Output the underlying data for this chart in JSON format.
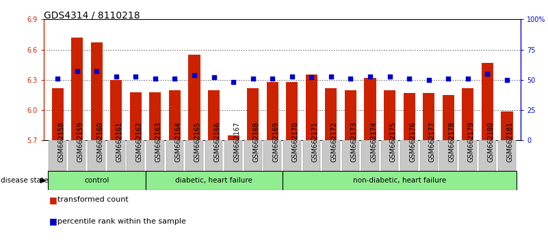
{
  "title": "GDS4314 / 8110218",
  "samples": [
    "GSM662158",
    "GSM662159",
    "GSM662160",
    "GSM662161",
    "GSM662162",
    "GSM662163",
    "GSM662164",
    "GSM662165",
    "GSM662166",
    "GSM662167",
    "GSM662168",
    "GSM662169",
    "GSM662170",
    "GSM662171",
    "GSM662172",
    "GSM662173",
    "GSM662174",
    "GSM662175",
    "GSM662176",
    "GSM662177",
    "GSM662178",
    "GSM662179",
    "GSM662180",
    "GSM662181"
  ],
  "bar_values": [
    6.22,
    6.72,
    6.67,
    6.3,
    6.18,
    6.18,
    6.2,
    6.55,
    6.2,
    5.75,
    6.22,
    6.28,
    6.28,
    6.35,
    6.22,
    6.2,
    6.32,
    6.2,
    6.17,
    6.17,
    6.15,
    6.22,
    6.47,
    5.99
  ],
  "percentile_values": [
    51,
    57,
    57,
    53,
    53,
    51,
    51,
    54,
    52,
    48,
    51,
    51,
    53,
    52,
    53,
    51,
    53,
    53,
    51,
    50,
    51,
    51,
    55,
    50
  ],
  "group_defs": [
    {
      "label": "control",
      "start": 0,
      "end": 4,
      "color": "#90EE90"
    },
    {
      "label": "diabetic, heart failure",
      "start": 5,
      "end": 11,
      "color": "#90EE90"
    },
    {
      "label": "non-diabetic, heart failure",
      "start": 12,
      "end": 23,
      "color": "#90EE90"
    }
  ],
  "bar_color": "#CC2200",
  "dot_color": "#0000CC",
  "ylim_left": [
    5.7,
    6.9
  ],
  "ylim_right": [
    0,
    100
  ],
  "yticks_left": [
    5.7,
    6.0,
    6.3,
    6.6,
    6.9
  ],
  "yticks_right": [
    0,
    25,
    50,
    75,
    100
  ],
  "ytick_labels_right": [
    "0",
    "25",
    "50",
    "75",
    "100%"
  ],
  "bar_width": 0.6,
  "bg_color": "#FFFFFF",
  "plot_bg_color": "#FFFFFF",
  "grid_color": "#000000",
  "title_fontsize": 10,
  "tick_fontsize": 7,
  "label_fontsize": 8,
  "xtick_bg_color": "#C8C8C8"
}
